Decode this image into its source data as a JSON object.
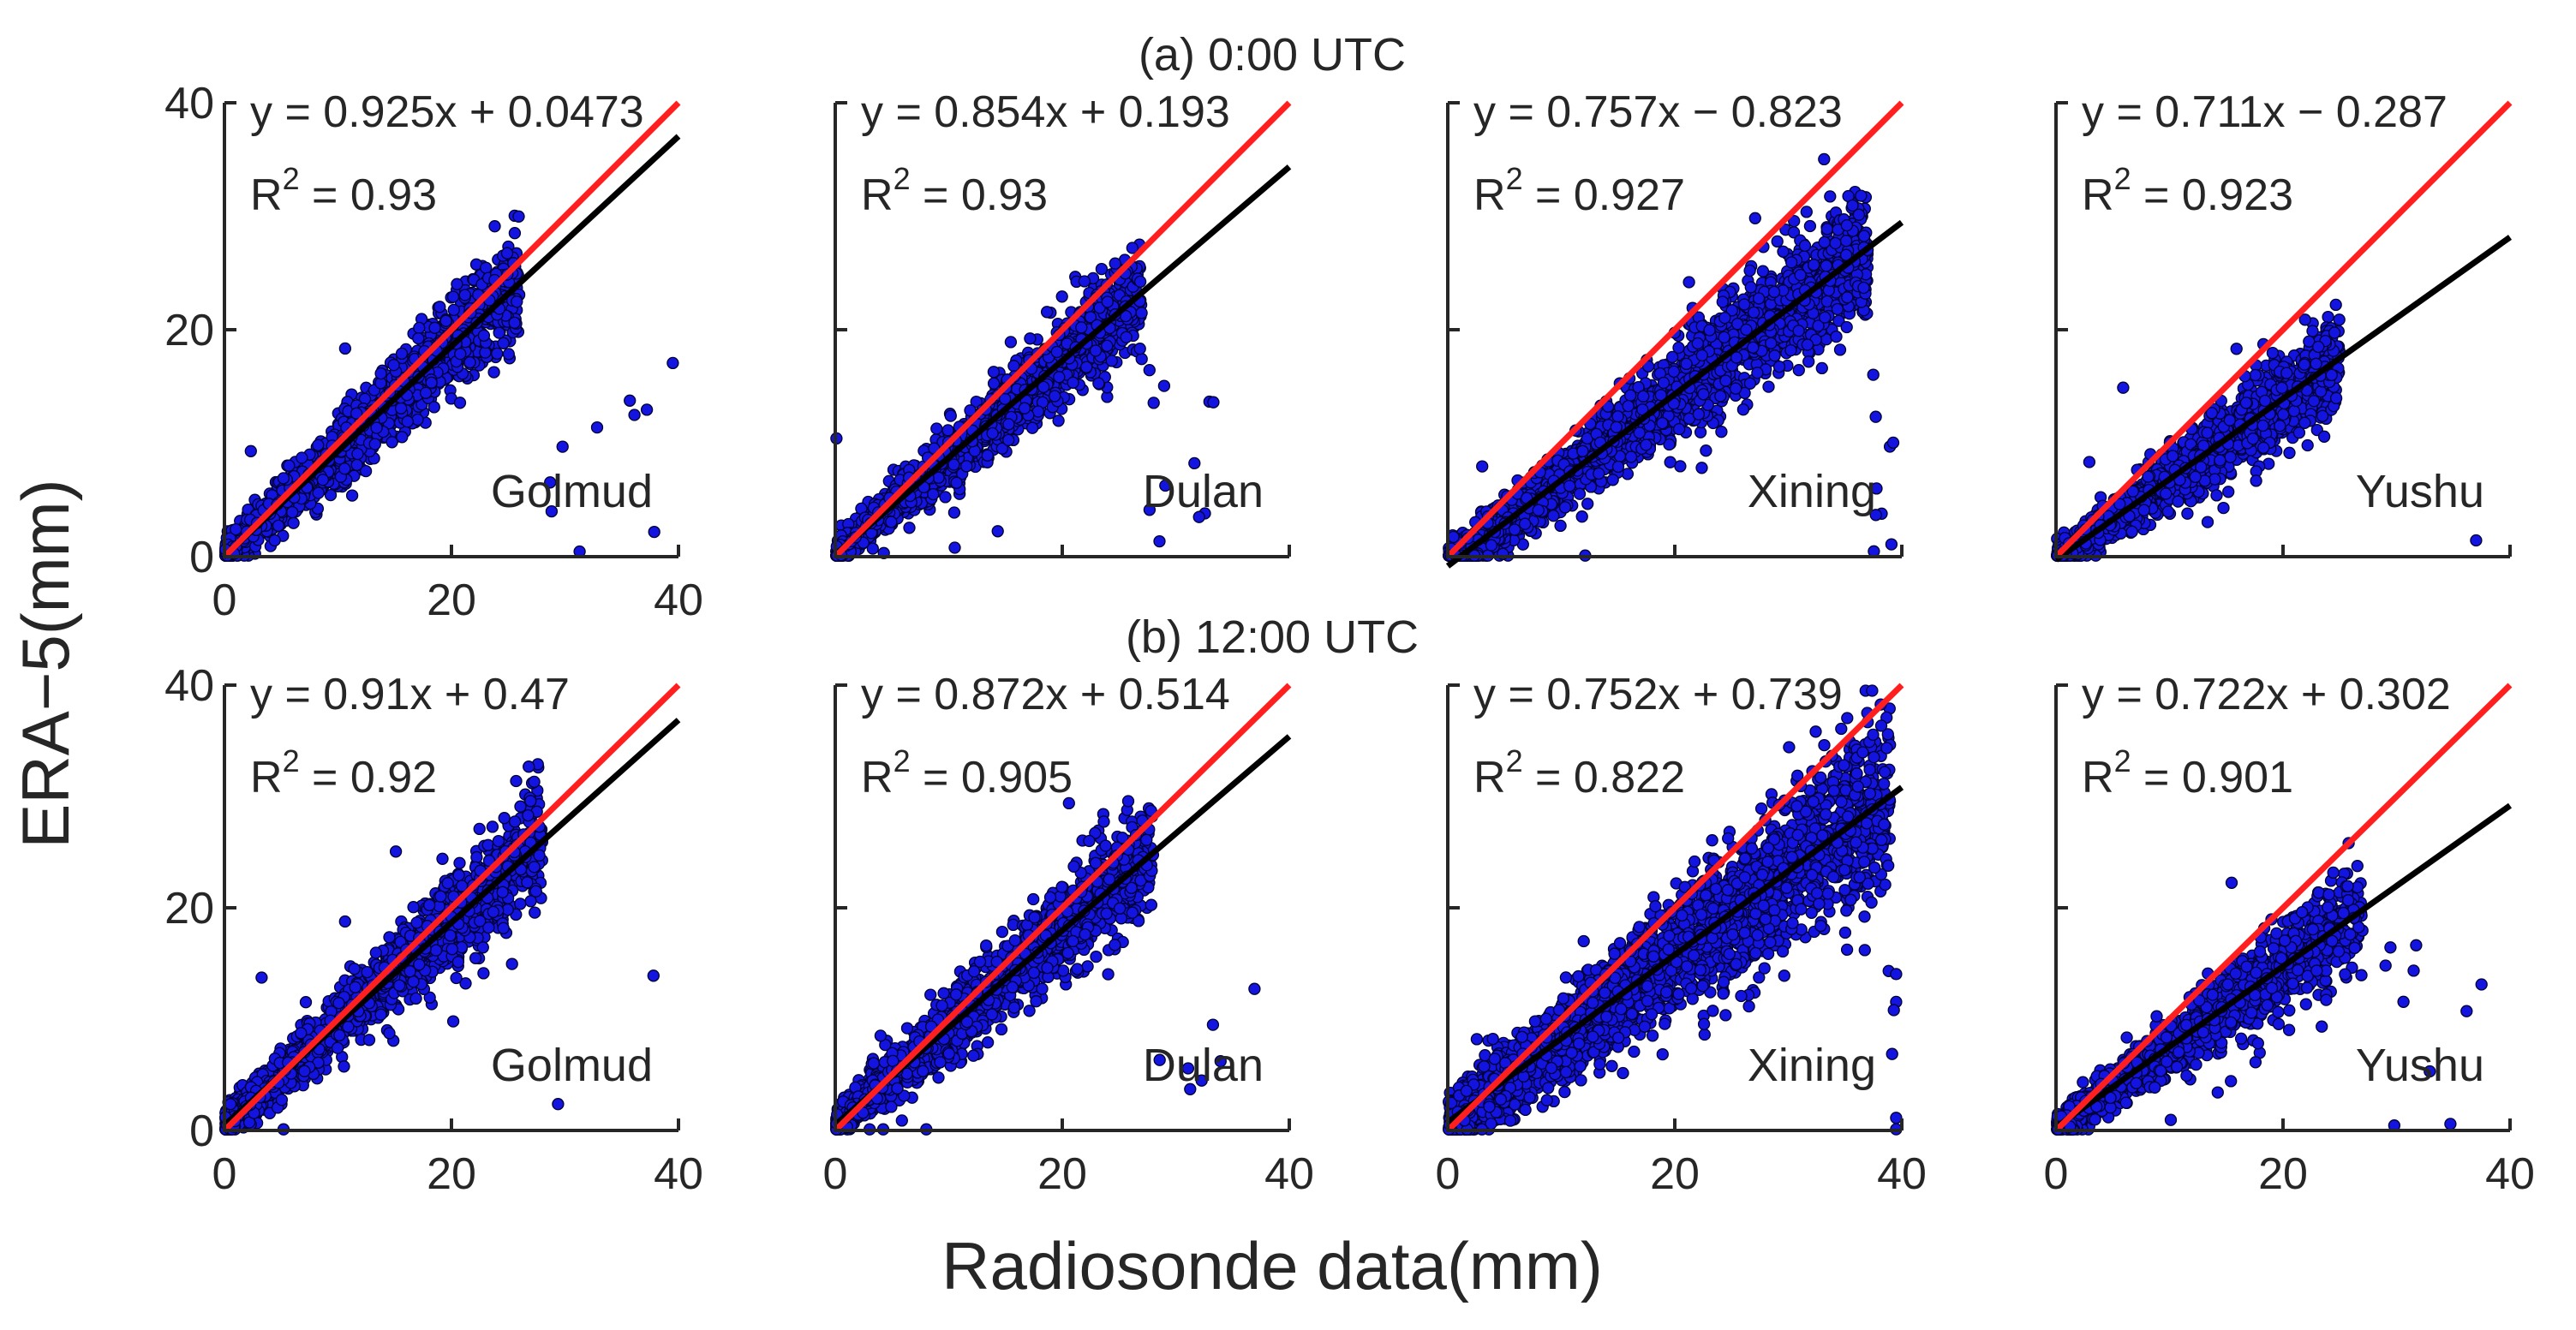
{
  "ylabel": "ERA−5(mm)",
  "xlabel": "Radiosonde data(mm)",
  "chart_data": [
    {
      "type": "scatter",
      "panel_title": "(a) 0:00 UTC",
      "station": "Golmud",
      "equation": "y = 0.925x + 0.0473",
      "r2_value": "0.93",
      "slope": 0.925,
      "intercept": 0.0473,
      "r2": 0.93,
      "xlim": [
        0,
        40
      ],
      "ylim": [
        0,
        40
      ],
      "x_ticks": [
        "0",
        "20",
        "40"
      ],
      "y_ticks": [
        "0",
        "20",
        "40"
      ],
      "point_range": [
        0,
        26
      ],
      "scatter_sd": 1.9,
      "n_points": 1500
    },
    {
      "type": "scatter",
      "station": "Dulan",
      "equation": "y = 0.854x + 0.193",
      "r2_value": "0.93",
      "slope": 0.854,
      "intercept": 0.193,
      "r2": 0.93,
      "xlim": [
        0,
        40
      ],
      "ylim": [
        0,
        40
      ],
      "x_ticks": [],
      "y_ticks": [],
      "point_range": [
        0,
        27
      ],
      "scatter_sd": 1.8,
      "n_points": 1500
    },
    {
      "type": "scatter",
      "station": "Xining",
      "equation": "y = 0.757x − 0.823",
      "r2_value": "0.927",
      "slope": 0.757,
      "intercept": -0.823,
      "r2": 0.927,
      "xlim": [
        0,
        40
      ],
      "ylim": [
        0,
        40
      ],
      "x_ticks": [],
      "y_ticks": [],
      "point_range": [
        0,
        37
      ],
      "scatter_sd": 2.2,
      "n_points": 2200
    },
    {
      "type": "scatter",
      "station": "Yushu",
      "equation": "y = 0.711x − 0.287",
      "r2_value": "0.923",
      "slope": 0.711,
      "intercept": -0.287,
      "r2": 0.923,
      "xlim": [
        0,
        40
      ],
      "ylim": [
        0,
        40
      ],
      "x_ticks": [],
      "y_ticks": [],
      "point_range": [
        0,
        25
      ],
      "scatter_sd": 1.7,
      "n_points": 1400
    },
    {
      "type": "scatter",
      "panel_title": "(b) 12:00 UTC",
      "station": "Golmud",
      "equation": "y = 0.91x + 0.47",
      "r2_value": "0.92",
      "slope": 0.91,
      "intercept": 0.47,
      "r2": 0.92,
      "xlim": [
        0,
        40
      ],
      "ylim": [
        0,
        40
      ],
      "x_ticks": [
        "0",
        "20",
        "40"
      ],
      "y_ticks": [
        "0",
        "20",
        "40"
      ],
      "point_range": [
        0,
        28
      ],
      "scatter_sd": 2.0,
      "n_points": 1500
    },
    {
      "type": "scatter",
      "station": "Dulan",
      "equation": "y = 0.872x + 0.514",
      "r2_value": "0.905",
      "slope": 0.872,
      "intercept": 0.514,
      "r2": 0.905,
      "xlim": [
        0,
        40
      ],
      "ylim": [
        0,
        40
      ],
      "x_ticks": [
        "0",
        "20",
        "40"
      ],
      "y_ticks": [],
      "point_range": [
        0,
        28
      ],
      "scatter_sd": 2.1,
      "n_points": 1500
    },
    {
      "type": "scatter",
      "station": "Xining",
      "equation": "y = 0.752x + 0.739",
      "r2_value": "0.822",
      "slope": 0.752,
      "intercept": 0.739,
      "r2": 0.822,
      "xlim": [
        0,
        40
      ],
      "ylim": [
        0,
        40
      ],
      "x_ticks": [
        "0",
        "20",
        "40"
      ],
      "y_ticks": [],
      "point_range": [
        0,
        39
      ],
      "scatter_sd": 3.2,
      "n_points": 2500
    },
    {
      "type": "scatter",
      "station": "Yushu",
      "equation": "y = 0.722x + 0.302",
      "r2_value": "0.901",
      "slope": 0.722,
      "intercept": 0.302,
      "r2": 0.901,
      "xlim": [
        0,
        40
      ],
      "ylim": [
        0,
        40
      ],
      "x_ticks": [
        "0",
        "20",
        "40"
      ],
      "y_ticks": [],
      "point_range": [
        0,
        27
      ],
      "scatter_sd": 1.8,
      "n_points": 1400
    }
  ]
}
